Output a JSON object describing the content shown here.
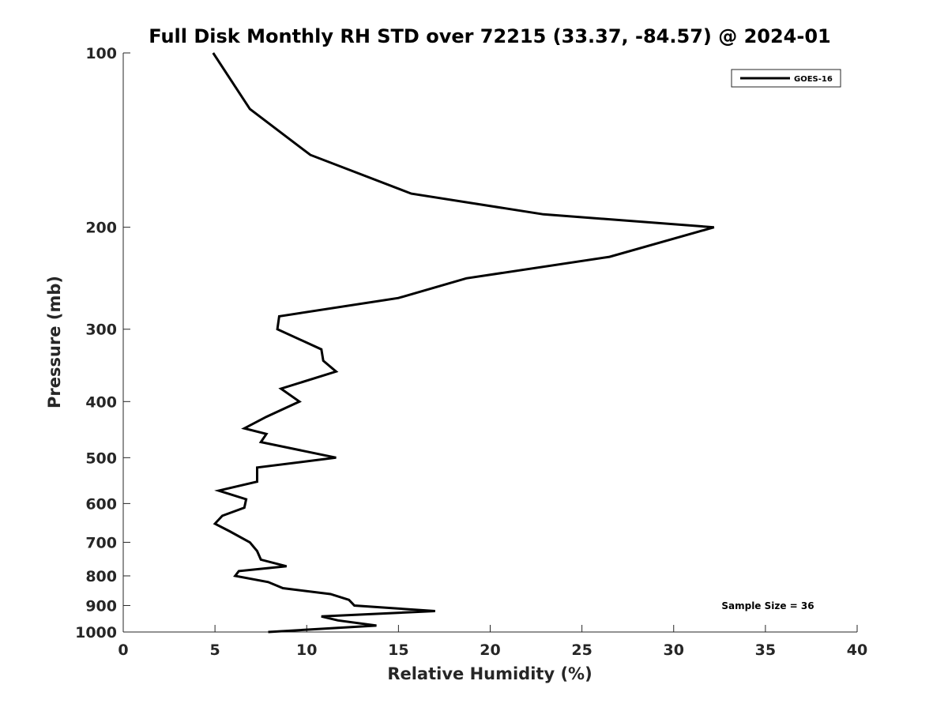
{
  "chart_data": {
    "type": "line",
    "title": "Full Disk Monthly RH STD over 72215 (33.37, -84.57) @ 2024-01",
    "xlabel": "Relative Humidity (%)",
    "ylabel": "Pressure (mb)",
    "xlim": [
      0,
      40
    ],
    "ylim": [
      100,
      1000
    ],
    "y_scale": "log",
    "y_reversed": true,
    "grid": false,
    "legend_position": "top-right",
    "x_ticks": [
      "0",
      "5",
      "10",
      "15",
      "20",
      "25",
      "30",
      "35",
      "40"
    ],
    "y_ticks": [
      "100",
      "200",
      "300",
      "400",
      "500",
      "600",
      "700",
      "800",
      "900",
      "1000"
    ],
    "series": [
      {
        "name": "GOES-16",
        "color": "#000000",
        "points": [
          [
            4.9,
            100
          ],
          [
            6.9,
            125
          ],
          [
            10.2,
            150
          ],
          [
            15.7,
            175
          ],
          [
            22.9,
            190
          ],
          [
            32.2,
            200
          ],
          [
            26.5,
            225
          ],
          [
            18.7,
            245
          ],
          [
            15.0,
            265
          ],
          [
            8.5,
            285
          ],
          [
            8.4,
            300
          ],
          [
            10.8,
            325
          ],
          [
            10.9,
            340
          ],
          [
            11.6,
            355
          ],
          [
            8.6,
            380
          ],
          [
            9.6,
            400
          ],
          [
            7.8,
            425
          ],
          [
            6.6,
            445
          ],
          [
            7.8,
            455
          ],
          [
            7.5,
            470
          ],
          [
            11.6,
            500
          ],
          [
            7.3,
            520
          ],
          [
            7.3,
            550
          ],
          [
            5.2,
            570
          ],
          [
            6.7,
            590
          ],
          [
            6.6,
            610
          ],
          [
            5.4,
            630
          ],
          [
            5.0,
            650
          ],
          [
            5.8,
            670
          ],
          [
            6.9,
            700
          ],
          [
            7.3,
            725
          ],
          [
            7.5,
            750
          ],
          [
            8.9,
            770
          ],
          [
            6.3,
            785
          ],
          [
            6.1,
            800
          ],
          [
            7.9,
            820
          ],
          [
            8.7,
            840
          ],
          [
            11.3,
            860
          ],
          [
            12.3,
            880
          ],
          [
            12.6,
            900
          ],
          [
            17.0,
            920
          ],
          [
            10.8,
            940
          ],
          [
            11.7,
            955
          ],
          [
            13.8,
            975
          ],
          [
            7.9,
            1000
          ]
        ]
      }
    ],
    "annotations": [
      "Sample Size = 36"
    ]
  }
}
